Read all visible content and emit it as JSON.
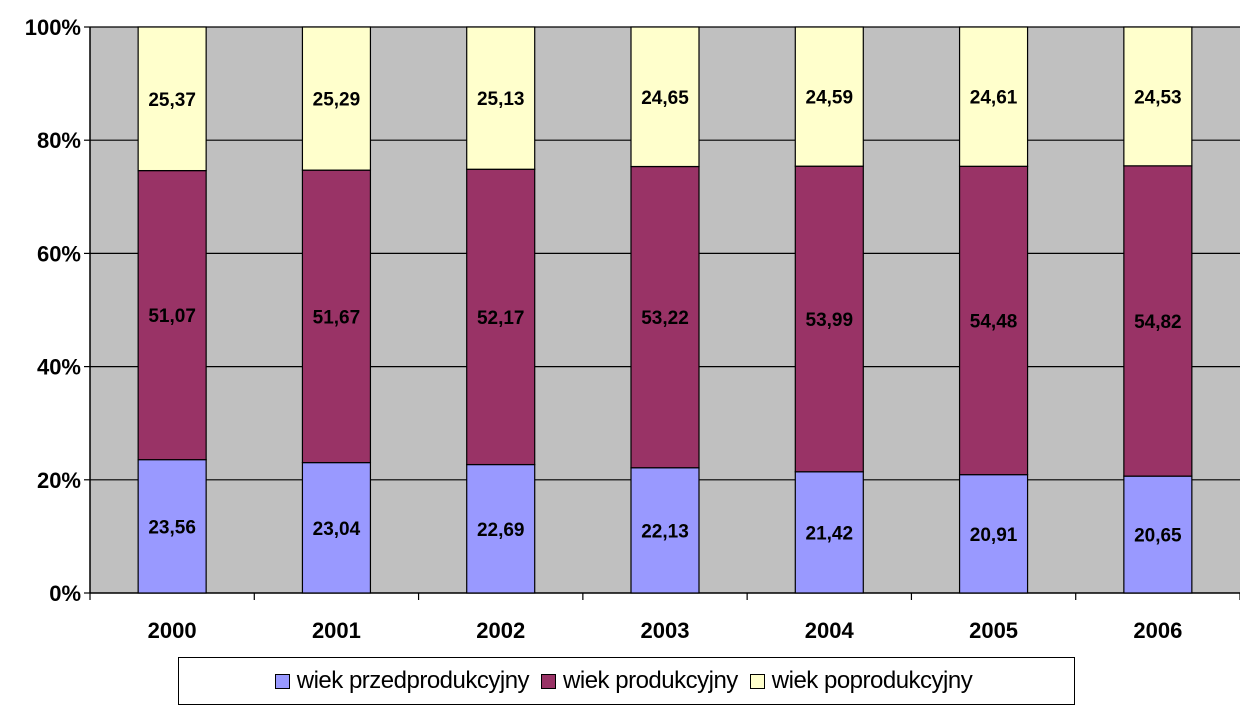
{
  "chart_data": {
    "type": "bar",
    "stacked": "percent",
    "categories": [
      "2000",
      "2001",
      "2002",
      "2003",
      "2004",
      "2005",
      "2006"
    ],
    "series": [
      {
        "name": "wiek przedprodukcyjny",
        "color": "#9999ff",
        "values": [
          23.56,
          23.04,
          22.69,
          22.13,
          21.42,
          20.91,
          20.65
        ],
        "labels": [
          "23,56",
          "23,04",
          "22,69",
          "22,13",
          "21,42",
          "20,91",
          "20,65"
        ]
      },
      {
        "name": "wiek produkcyjny",
        "color": "#993366",
        "values": [
          51.07,
          51.67,
          52.17,
          53.22,
          53.99,
          54.48,
          54.82
        ],
        "labels": [
          "51,07",
          "51,67",
          "52,17",
          "53,22",
          "53,99",
          "54,48",
          "54,82"
        ]
      },
      {
        "name": "wiek poprodukcyjny",
        "color": "#ffffcc",
        "values": [
          25.37,
          25.29,
          25.13,
          24.65,
          24.59,
          24.61,
          24.53
        ],
        "labels": [
          "25,37",
          "25,29",
          "25,13",
          "24,65",
          "24,59",
          "24,61",
          "24,53"
        ]
      }
    ],
    "y_ticks": [
      "0%",
      "20%",
      "40%",
      "60%",
      "80%",
      "100%"
    ],
    "ylim": [
      0,
      100
    ],
    "plot_background": "#c0c0c0",
    "grid": true,
    "legend_position": "bottom",
    "title": "",
    "xlabel": "",
    "ylabel": ""
  }
}
